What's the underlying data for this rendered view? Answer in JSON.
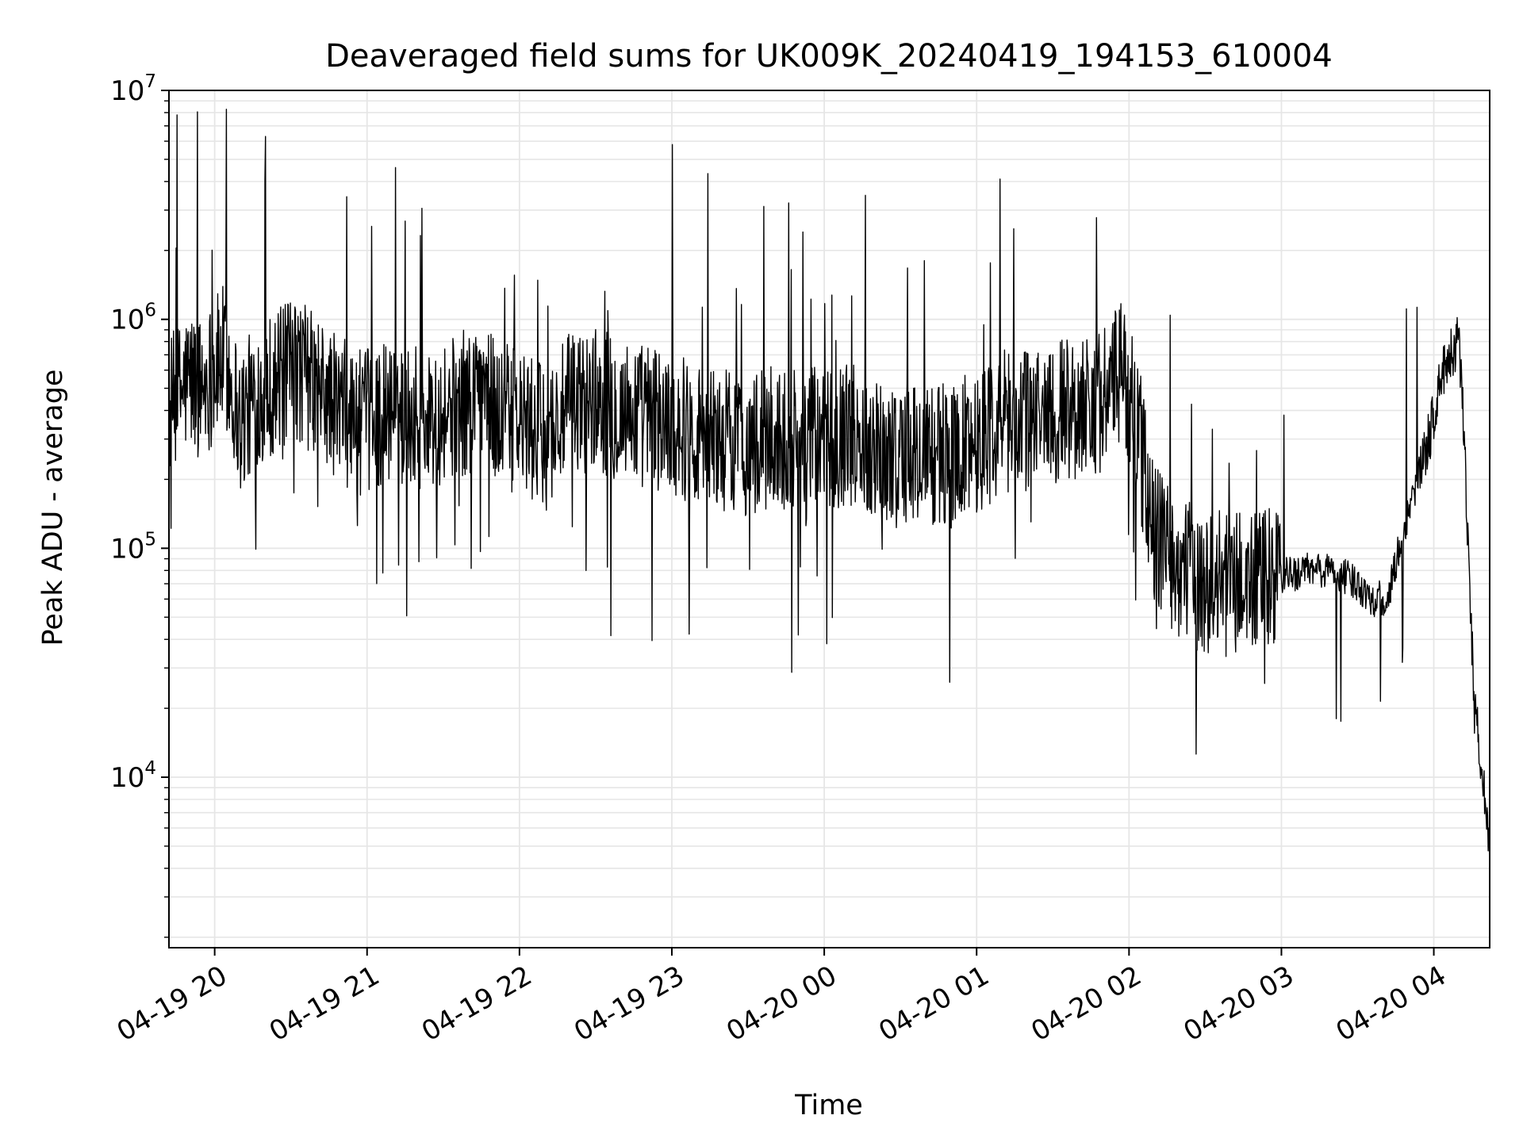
{
  "chart_data": {
    "type": "line",
    "title": "Deaveraged field sums for UK009K_20240419_194153_610004",
    "xlabel": "Time",
    "ylabel": "Peak ADU - average",
    "yscale": "log",
    "ylim": [
      1800,
      10000000
    ],
    "xlim": [
      "2024-04-19 19:42",
      "2024-04-20 04:22"
    ],
    "grid": true,
    "x_ticks": [
      "04-19 20",
      "04-19 21",
      "04-19 22",
      "04-19 23",
      "04-20 00",
      "04-20 01",
      "04-20 02",
      "04-20 03",
      "04-20 04"
    ],
    "y_ticks": [
      {
        "base": "10",
        "exp": "4",
        "value": 10000
      },
      {
        "base": "10",
        "exp": "5",
        "value": 100000
      },
      {
        "base": "10",
        "exp": "6",
        "value": 1000000
      },
      {
        "base": "10",
        "exp": "7",
        "value": 10000000
      }
    ],
    "line_color": "#000000",
    "series": [
      {
        "x": [
          "2024-04-19 19:42",
          "2024-04-19 19:50",
          "2024-04-19 19:54",
          "2024-04-19 20:00",
          "2024-04-19 20:04",
          "2024-04-19 20:06",
          "2024-04-19 20:08",
          "2024-04-19 20:10",
          "2024-04-19 20:14",
          "2024-04-19 20:16",
          "2024-04-19 20:20",
          "2024-04-19 20:26",
          "2024-04-19 20:34",
          "2024-04-19 20:40",
          "2024-04-19 20:44",
          "2024-04-19 20:50",
          "2024-04-19 20:58",
          "2024-04-19 21:08",
          "2024-04-19 21:20",
          "2024-04-19 21:24",
          "2024-04-19 21:30",
          "2024-04-19 21:36",
          "2024-04-19 21:42",
          "2024-04-19 21:44",
          "2024-04-19 21:50",
          "2024-04-19 22:00",
          "2024-04-19 22:10",
          "2024-04-19 22:20",
          "2024-04-19 22:30",
          "2024-04-19 22:40",
          "2024-04-19 22:50",
          "2024-04-19 23:00",
          "2024-04-19 23:10",
          "2024-04-19 23:20",
          "2024-04-19 23:30",
          "2024-04-19 23:40",
          "2024-04-19 23:50",
          "2024-04-20 00:00",
          "2024-04-20 00:10",
          "2024-04-20 00:20",
          "2024-04-20 00:30",
          "2024-04-20 00:40",
          "2024-04-20 00:50",
          "2024-04-20 01:00",
          "2024-04-20 01:10",
          "2024-04-20 01:20",
          "2024-04-20 01:30",
          "2024-04-20 01:40",
          "2024-04-20 01:50",
          "2024-04-20 01:58",
          "2024-04-20 02:04",
          "2024-04-20 02:10",
          "2024-04-20 02:20",
          "2024-04-20 02:30",
          "2024-04-20 02:40",
          "2024-04-20 02:50",
          "2024-04-20 03:00",
          "2024-04-20 03:10",
          "2024-04-20 03:20",
          "2024-04-20 03:30",
          "2024-04-20 03:36",
          "2024-04-20 03:42",
          "2024-04-20 03:48",
          "2024-04-20 03:54",
          "2024-04-20 03:58",
          "2024-04-20 04:02",
          "2024-04-20 04:06",
          "2024-04-20 04:10",
          "2024-04-20 04:12",
          "2024-04-20 04:16",
          "2024-04-20 04:20",
          "2024-04-20 04:22"
        ],
        "y": [
          400000,
          550000,
          500000,
          600000,
          700000,
          550000,
          450000,
          350000,
          420000,
          480000,
          500000,
          550000,
          600000,
          500000,
          450000,
          400000,
          350000,
          400000,
          380000,
          350000,
          400000,
          420000,
          450000,
          600000,
          400000,
          350000,
          300000,
          420000,
          450000,
          400000,
          380000,
          350000,
          320000,
          300000,
          280000,
          300000,
          300000,
          300000,
          320000,
          280000,
          250000,
          260000,
          250000,
          300000,
          350000,
          380000,
          400000,
          420000,
          450000,
          600000,
          300000,
          120000,
          80000,
          70000,
          70000,
          70000,
          75000,
          80000,
          80000,
          70000,
          60000,
          60000,
          120000,
          200000,
          300000,
          500000,
          700000,
          800000,
          300000,
          20000,
          9000,
          4500
        ]
      }
    ],
    "annotations": []
  }
}
